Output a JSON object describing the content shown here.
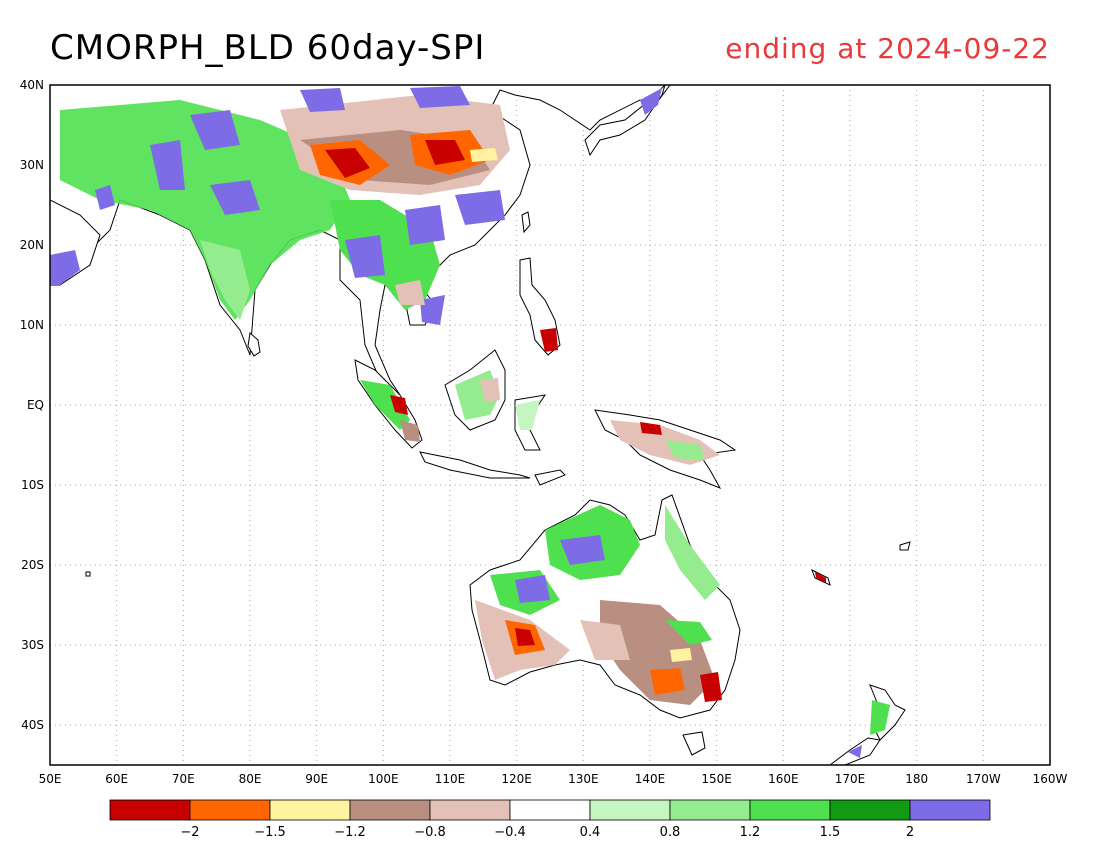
{
  "title": "CMORPH_BLD 60day-SPI",
  "subtitle": "ending at 2024-09-22",
  "colors": {
    "title_right": "#e83a3a",
    "land_outline": "#000000",
    "grid": "#aaaaaa"
  },
  "map": {
    "lon_range": [
      50,
      200
    ],
    "lat_range": [
      -45,
      40
    ],
    "lat_ticks": [
      "40N",
      "30N",
      "20N",
      "10N",
      "EQ",
      "10S",
      "20S",
      "30S",
      "40S"
    ],
    "lon_ticks": [
      "50E",
      "60E",
      "70E",
      "80E",
      "90E",
      "100E",
      "110E",
      "120E",
      "130E",
      "140E",
      "150E",
      "160E",
      "170E",
      "180",
      "170W",
      "160W"
    ],
    "grid": "dotted"
  },
  "colorbar": {
    "colors": [
      "#c80000",
      "#ff6600",
      "#fff3a0",
      "#b98f82",
      "#e3c1b6",
      "#ffffff",
      "#c5f5c1",
      "#95ec8e",
      "#4fe04f",
      "#129a12",
      "#7e6be6"
    ],
    "labels": [
      "-2",
      "-1.5",
      "-1.2",
      "-0.8",
      "-0.4",
      "0.4",
      "0.8",
      "1.2",
      "1.5",
      "2"
    ]
  }
}
